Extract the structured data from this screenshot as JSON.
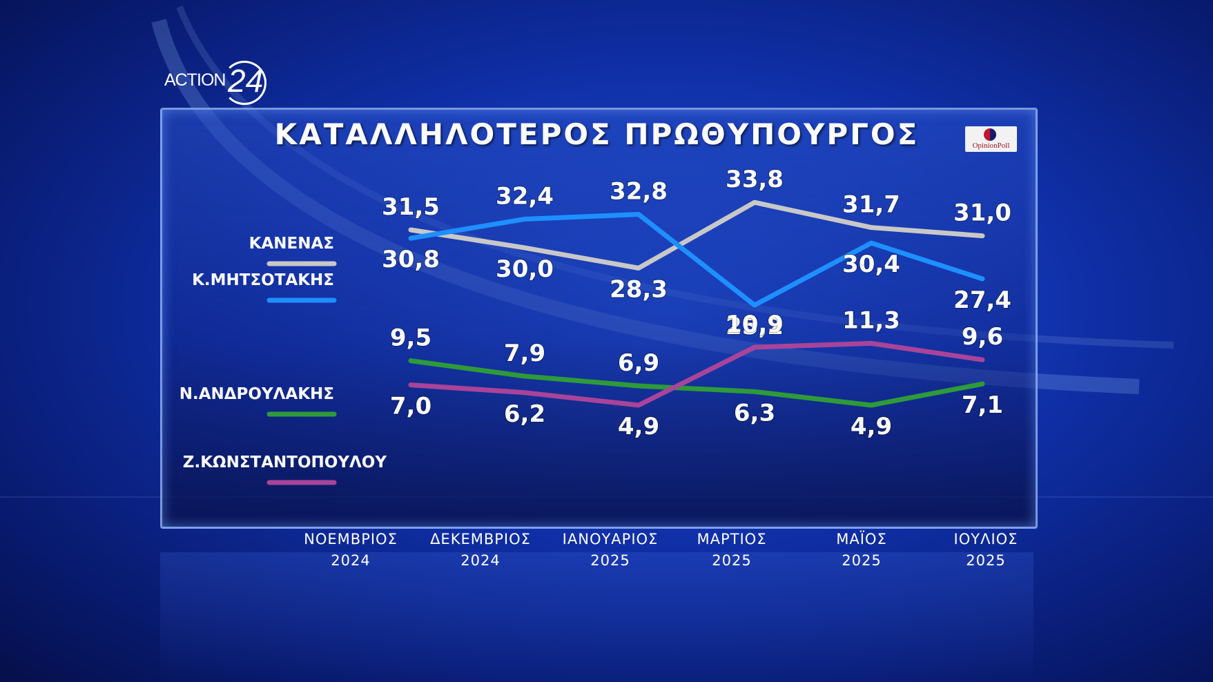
{
  "logo": {
    "text": "ACTION",
    "number": "24"
  },
  "pollster": {
    "name": "OpinionPoll"
  },
  "chart_data": {
    "type": "line",
    "title": "ΚΑΤΑΛΛΗΛΟΤΕΡΟΣ  ΠΡΩΘΥΠΟΥΡΓΟΣ",
    "categories": [
      "ΝΟΕΜΒΡΙΟΣ 2024",
      "ΔΕΚΕΜΒΡΙΟΣ 2024",
      "ΙΑΝΟΥΑΡΙΟΣ 2025",
      "ΜΑΡΤΙΟΣ 2025",
      "ΜΑΪΟΣ 2025",
      "ΙΟΥΛΙΟΣ 2025"
    ],
    "category_lines": [
      [
        "ΝΟΕΜΒΡΙΟΣ",
        "2024"
      ],
      [
        "ΔΕΚΕΜΒΡΙΟΣ",
        "2024"
      ],
      [
        "ΙΑΝΟΥΑΡΙΟΣ",
        "2025"
      ],
      [
        "ΜΑΡΤΙΟΣ",
        "2025"
      ],
      [
        "ΜΑΪΟΣ",
        "2025"
      ],
      [
        "ΙΟΥΛΙΟΣ",
        "2025"
      ]
    ],
    "series": [
      {
        "name": "ΚΑΝΕΝΑΣ",
        "color": "#c8c8c8",
        "values": [
          31.5,
          30.0,
          28.3,
          33.8,
          31.7,
          31.0
        ],
        "labels": [
          "31,5",
          "30,0",
          "28,3",
          "33,8",
          "31,7",
          "31,0"
        ]
      },
      {
        "name": "Κ.ΜΗΤΣΟΤΑΚΗΣ",
        "color": "#1e8fff",
        "values": [
          30.8,
          32.4,
          32.8,
          25.2,
          30.4,
          27.4
        ],
        "labels": [
          "30,8",
          "32,4",
          "32,8",
          "25,2",
          "30,4",
          "27,4"
        ]
      },
      {
        "name": "Ν.ΑΝΔΡΟΥΛΑΚΗΣ",
        "color": "#2e9a3a",
        "values": [
          9.5,
          7.9,
          6.9,
          6.3,
          4.9,
          7.1
        ],
        "labels": [
          "9,5",
          "7,9",
          "6,9",
          "6,3",
          "4,9",
          "7,1"
        ]
      },
      {
        "name": "Ζ.ΚΩΝΣΤΑΝΤΟΠΟΥΛΟΥ",
        "color": "#a8449a",
        "values": [
          7.0,
          6.2,
          4.9,
          10.9,
          11.3,
          9.6
        ],
        "labels": [
          "7,0",
          "6,2",
          "4,9",
          "10,9",
          "11,3",
          "9,6"
        ]
      }
    ],
    "legend_position": "left",
    "grid": false
  }
}
